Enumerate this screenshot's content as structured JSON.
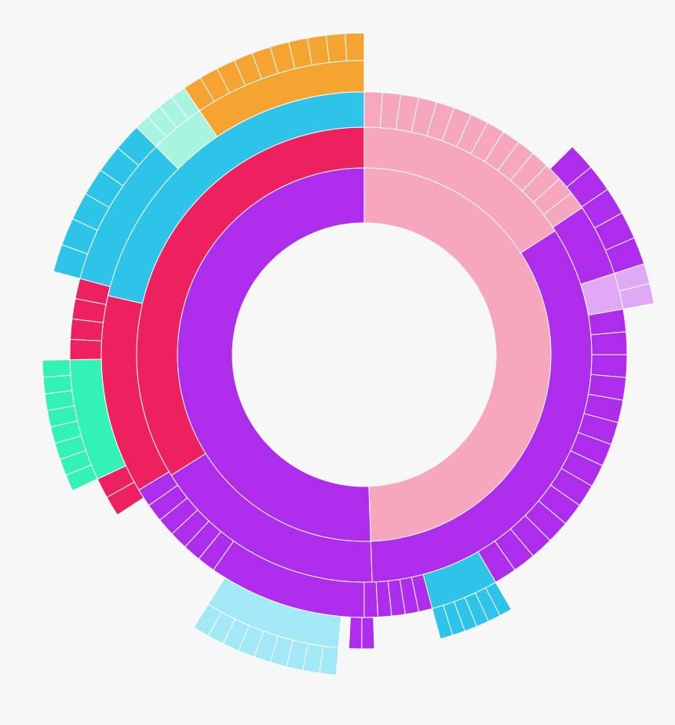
{
  "chart_data": {
    "type": "sunburst",
    "rings": [
      {
        "values": [
          178,
          182
        ],
        "colors": [
          "#f6a6bd",
          "#ae2cec"
        ]
      },
      {
        "values": [
          57,
          121,
          60,
          122
        ],
        "colors": [
          "#f6a6bd",
          "#ae2cec",
          "#ae2cec",
          "#ee2160"
        ]
      },
      {
        "values": [
          4,
          4,
          4,
          4,
          4,
          4,
          4,
          4,
          4,
          4,
          4,
          4,
          4,
          4,
          16,
          8,
          5,
          5,
          5,
          5,
          5,
          5,
          5,
          5,
          5,
          5,
          5,
          5,
          5,
          5,
          15,
          3,
          3,
          3,
          3,
          3,
          35,
          4,
          4,
          4,
          4,
          4,
          4,
          44,
          77
        ],
        "colors": [
          "#f6a6bd",
          "#f6a6bd",
          "#f6a6bd",
          "#f6a6bd",
          "#f6a6bd",
          "#f6a6bd",
          "#f6a6bd",
          "#f6a6bd",
          "#f6a6bd",
          "#f6a6bd",
          "#f6a6bd",
          "#f6a6bd",
          "#f6a6bd",
          "#f6a6bd",
          "#ae2cec",
          "#e0a8f5",
          "#ae2cec",
          "#ae2cec",
          "#ae2cec",
          "#ae2cec",
          "#ae2cec",
          "#ae2cec",
          "#ae2cec",
          "#ae2cec",
          "#ae2cec",
          "#ae2cec",
          "#ae2cec",
          "#ae2cec",
          "#ae2cec",
          "#ae2cec",
          "#2ec4ea",
          "#ae2cec",
          "#ae2cec",
          "#ae2cec",
          "#ae2cec",
          "#ae2cec",
          "#ae2cec",
          "#ae2cec",
          "#ae2cec",
          "#ae2cec",
          "#ae2cec",
          "#ae2cec",
          "#ae2cec",
          "#ee2160",
          "#2ec4ea"
        ]
      },
      {
        "values": [
          45,
          5.4,
          5.4,
          5.4,
          5.4,
          5.4,
          4,
          4,
          70,
          2.5,
          2.5,
          2.5,
          2.5,
          2.5,
          2.5,
          13,
          2.5,
          2.5,
          2,
          27,
          25,
          4,
          4,
          24,
          4,
          4,
          4,
          4,
          30,
          11,
          34
        ],
        "colors": [
          null,
          "#ae2cec",
          "#ae2cec",
          "#ae2cec",
          "#ae2cec",
          "#ae2cec",
          "#e0a8f5",
          "#e0a8f5",
          null,
          "#2ec4ea",
          "#2ec4ea",
          "#2ec4ea",
          "#2ec4ea",
          "#2ec4ea",
          "#2ec4ea",
          null,
          "#ae2cec",
          "#ae2cec",
          null,
          "#a3e8f6",
          null,
          "#ee2160",
          "#ee2160",
          "#33f2b5",
          "#ee2160",
          "#ee2160",
          "#ee2160",
          "#ee2160",
          "#2ec4ea",
          "#a8f5df",
          "#f5a431"
        ]
      },
      {
        "values": [
          185,
          3,
          3,
          3,
          3,
          3,
          3,
          3,
          3,
          3,
          33,
          3,
          3,
          3,
          3,
          3,
          3,
          3,
          3,
          16,
          5,
          5,
          5,
          5,
          5,
          5,
          2.75,
          2.75,
          2.75,
          2.75,
          3.4,
          3.4,
          3.4,
          3.4,
          3.4,
          3.4,
          3.4,
          3.4,
          3.4,
          3.4
        ],
        "colors": [
          null,
          "#a3e8f6",
          "#a3e8f6",
          "#a3e8f6",
          "#a3e8f6",
          "#a3e8f6",
          "#a3e8f6",
          "#a3e8f6",
          "#a3e8f6",
          "#a3e8f6",
          null,
          "#33f2b5",
          "#33f2b5",
          "#33f2b5",
          "#33f2b5",
          "#33f2b5",
          "#33f2b5",
          "#33f2b5",
          "#33f2b5",
          null,
          "#2ec4ea",
          "#2ec4ea",
          "#2ec4ea",
          "#2ec4ea",
          "#2ec4ea",
          "#2ec4ea",
          "#a8f5df",
          "#a8f5df",
          "#a8f5df",
          "#a8f5df",
          "#f5a431",
          "#f5a431",
          "#f5a431",
          "#f5a431",
          "#f5a431",
          "#f5a431",
          "#f5a431",
          "#f5a431",
          "#f5a431",
          "#f5a431"
        ]
      }
    ]
  }
}
